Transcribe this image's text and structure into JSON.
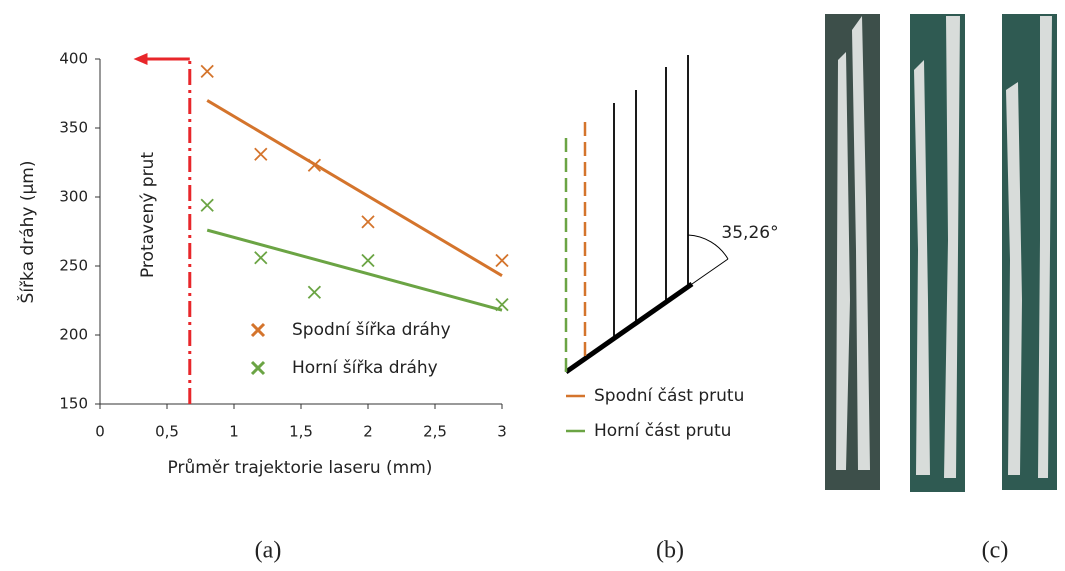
{
  "chart_data": {
    "type": "scatter",
    "x_label": "Průměr trajektorie laseru (mm)",
    "y_label": "Šířka dráhy (µm)",
    "xlim": [
      0,
      3
    ],
    "ylim": [
      150,
      400
    ],
    "xticks": [
      0,
      {
        "value": 0.5,
        "label": "0,5"
      },
      1,
      {
        "value": 1.5,
        "label": "1,5"
      },
      2,
      {
        "value": 2.5,
        "label": "2,5"
      },
      3
    ],
    "yticks": [
      150,
      200,
      250,
      300,
      350,
      400
    ],
    "grid": false,
    "series": [
      {
        "name": "Spodní šířka dráhy",
        "color": "#d4742c",
        "x": [
          0.8,
          1.2,
          1.6,
          2,
          3
        ],
        "values": [
          391,
          331,
          323,
          282,
          254
        ],
        "trend": {
          "x": [
            0.8,
            3
          ],
          "values": [
            370,
            243
          ]
        }
      },
      {
        "name": "Horní šířka dráhy",
        "color": "#6ba444",
        "x": [
          0.8,
          1.2,
          1.6,
          2,
          3
        ],
        "values": [
          294,
          256,
          231,
          254,
          222
        ],
        "trend": {
          "x": [
            0.8,
            3
          ],
          "values": [
            276,
            218
          ]
        }
      }
    ],
    "annotation": {
      "text": "Protavený prut",
      "x": 0.67,
      "arrow_to_x": 0.25,
      "color": "#e8262a"
    }
  },
  "diagram": {
    "angle_label": "35,26°",
    "legend": [
      {
        "name": "Spodní část prutu",
        "color": "#d4742c"
      },
      {
        "name": "Horní část prutu",
        "color": "#6ba444"
      }
    ]
  },
  "captions": [
    "(a)",
    "(b)",
    "(c)"
  ]
}
